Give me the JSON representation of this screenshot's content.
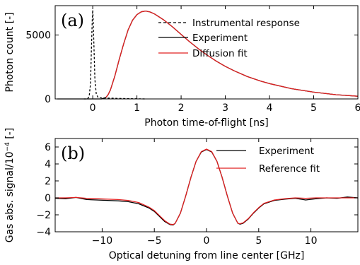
{
  "chart_data": [
    {
      "type": "line",
      "panel_label": "(a)",
      "xlabel": "Photon time-of-flight [ns]",
      "ylabel": "Photon count [-]",
      "xlim": [
        -0.85,
        6
      ],
      "ylim": [
        0,
        7300
      ],
      "x_ticks": [
        0,
        1,
        2,
        3,
        4,
        5,
        6
      ],
      "y_ticks": [
        0,
        5000
      ],
      "legend_position": "top-right",
      "series": [
        {
          "name": "Instrumental response",
          "style": "dashed",
          "color": "#000000",
          "x": [
            -0.2,
            -0.12,
            -0.08,
            -0.05,
            -0.03,
            -0.01,
            0.0,
            0.01,
            0.03,
            0.05,
            0.08,
            0.12,
            0.2,
            0.4,
            0.6,
            0.8,
            1.0,
            1.2
          ],
          "y": [
            0,
            0,
            200,
            1200,
            3800,
            6300,
            6950,
            6300,
            3800,
            1500,
            400,
            120,
            80,
            60,
            40,
            20,
            10,
            0
          ]
        },
        {
          "name": "Experiment",
          "style": "solid",
          "color": "#000000",
          "x": [
            -0.8,
            0.2,
            0.3,
            0.35,
            0.4,
            0.5,
            0.6,
            0.7,
            0.8,
            0.9,
            1.0,
            1.1,
            1.2,
            1.3,
            1.4,
            1.6,
            1.8,
            2.0,
            2.2,
            2.4,
            2.6,
            2.8,
            3.0,
            3.2,
            3.5,
            3.8,
            4.0,
            4.5,
            5.0,
            5.5,
            6.0
          ],
          "y": [
            0,
            0,
            120,
            350,
            700,
            1800,
            3100,
            4300,
            5400,
            6150,
            6600,
            6820,
            6880,
            6800,
            6650,
            6200,
            5650,
            5050,
            4450,
            3900,
            3400,
            2950,
            2550,
            2200,
            1750,
            1400,
            1200,
            800,
            530,
            330,
            210
          ]
        },
        {
          "name": "Diffusion fit",
          "style": "solid",
          "color": "#e02020",
          "x": [
            0.3,
            0.35,
            0.4,
            0.5,
            0.6,
            0.7,
            0.8,
            0.9,
            1.0,
            1.1,
            1.2,
            1.3,
            1.4,
            1.6,
            1.8,
            2.0,
            2.2,
            2.4,
            2.6,
            2.8,
            3.0,
            3.2,
            3.5,
            3.8,
            4.0,
            4.5,
            5.0,
            5.5,
            6.0
          ],
          "y": [
            120,
            350,
            700,
            1800,
            3100,
            4300,
            5400,
            6150,
            6600,
            6820,
            6880,
            6800,
            6650,
            6200,
            5650,
            5050,
            4450,
            3900,
            3400,
            2950,
            2550,
            2200,
            1750,
            1400,
            1200,
            800,
            530,
            330,
            210
          ]
        }
      ]
    },
    {
      "type": "line",
      "panel_label": "(b)",
      "xlabel": "Optical detuning from line center [GHz]",
      "ylabel_prefix": "Gas abs. signal/10",
      "ylabel_exponent": "−4",
      "ylabel_suffix": " [-]",
      "xlim": [
        -14.5,
        14.5
      ],
      "ylim": [
        -4,
        7
      ],
      "x_ticks": [
        -10,
        -5,
        0,
        5,
        10
      ],
      "y_ticks": [
        -4,
        -2,
        0,
        2,
        4,
        6
      ],
      "legend_position": "top-right",
      "series": [
        {
          "name": "Experiment",
          "style": "solid",
          "color": "#000000",
          "x": [
            -14.5,
            -13.5,
            -12.5,
            -11.5,
            -10.5,
            -9.5,
            -8.5,
            -7.5,
            -6.5,
            -5.5,
            -5.0,
            -4.5,
            -4.0,
            -3.5,
            -3.2,
            -3.0,
            -2.5,
            -2.0,
            -1.5,
            -1.0,
            -0.5,
            0.0,
            0.5,
            1.0,
            1.5,
            2.0,
            2.5,
            3.0,
            3.2,
            3.5,
            4.0,
            4.5,
            5.0,
            5.5,
            6.5,
            7.5,
            8.5,
            9.5,
            10.5,
            11.5,
            12.5,
            13.5,
            14.5
          ],
          "y": [
            -0.05,
            -0.1,
            0.05,
            -0.2,
            -0.25,
            -0.3,
            -0.35,
            -0.45,
            -0.7,
            -1.2,
            -1.6,
            -2.2,
            -2.8,
            -3.15,
            -3.2,
            -3.0,
            -1.8,
            0.2,
            2.4,
            4.3,
            5.4,
            5.7,
            5.4,
            4.3,
            2.4,
            0.2,
            -1.8,
            -3.0,
            -3.1,
            -3.0,
            -2.5,
            -1.8,
            -1.2,
            -0.7,
            -0.3,
            -0.15,
            -0.05,
            -0.25,
            -0.1,
            0.0,
            -0.05,
            0.1,
            0.0
          ]
        },
        {
          "name": "Reference fit",
          "style": "solid",
          "color": "#e02020",
          "x": [
            -14.5,
            -13.5,
            -12.5,
            -11.5,
            -10.5,
            -9.5,
            -8.5,
            -7.5,
            -6.5,
            -5.5,
            -5.0,
            -4.5,
            -4.0,
            -3.5,
            -3.2,
            -3.0,
            -2.5,
            -2.0,
            -1.5,
            -1.0,
            -0.5,
            0.0,
            0.5,
            1.0,
            1.5,
            2.0,
            2.5,
            3.0,
            3.2,
            3.5,
            4.0,
            4.5,
            5.0,
            5.5,
            6.5,
            7.5,
            8.5,
            9.5,
            10.5,
            11.5,
            12.5,
            13.5,
            14.5
          ],
          "y": [
            0.0,
            0.0,
            0.05,
            -0.05,
            -0.1,
            -0.15,
            -0.2,
            -0.3,
            -0.55,
            -1.1,
            -1.5,
            -2.1,
            -2.7,
            -3.1,
            -3.15,
            -3.0,
            -1.8,
            0.2,
            2.4,
            4.3,
            5.45,
            5.75,
            5.45,
            4.3,
            2.4,
            0.2,
            -1.8,
            -3.0,
            -3.05,
            -2.95,
            -2.45,
            -1.75,
            -1.15,
            -0.65,
            -0.25,
            -0.1,
            0.0,
            -0.05,
            0.0,
            0.0,
            0.0,
            0.0,
            0.0
          ]
        }
      ]
    }
  ]
}
